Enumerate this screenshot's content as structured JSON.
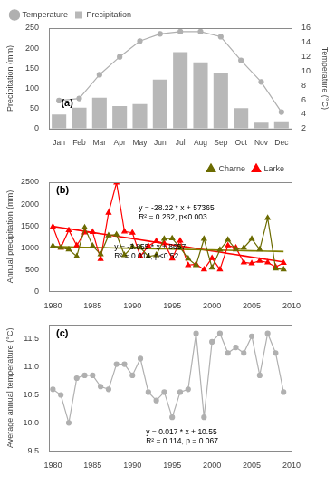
{
  "chart_data": [
    {
      "type": "bar",
      "categories": [
        "Jan",
        "Feb",
        "Mar",
        "Apr",
        "May",
        "Jun",
        "Jul",
        "Aug",
        "Sep",
        "Oct",
        "Nov",
        "Dec"
      ],
      "series": [
        {
          "name": "Precipitation",
          "type": "bar",
          "color": "#b8b8b8",
          "values": [
            35,
            52,
            77,
            56,
            61,
            122,
            190,
            165,
            139,
            51,
            15,
            18
          ]
        },
        {
          "name": "Temperature",
          "type": "line",
          "axis": "y2",
          "color": "#b0b0b0",
          "marker": "circle",
          "values": [
            5.9,
            6.2,
            9.5,
            12.0,
            14.2,
            15.2,
            15.5,
            15.5,
            14.8,
            11.5,
            8.5,
            4.3
          ]
        }
      ],
      "ylabel": "Precipitation (mm)",
      "y2label": "Temperature (°C)",
      "ylim": [
        0,
        250
      ],
      "yticks": [
        0,
        50,
        100,
        150,
        200,
        250
      ],
      "y2lim": [
        2,
        16
      ],
      "y2ticks": [
        2,
        4,
        6,
        8,
        10,
        12,
        14,
        16
      ],
      "legend": "upper left",
      "grid": false,
      "annotations": [
        "(a)"
      ]
    },
    {
      "type": "line",
      "x": [
        1980,
        1981,
        1982,
        1983,
        1984,
        1985,
        1986,
        1987,
        1988,
        1989,
        1990,
        1991,
        1992,
        1993,
        1994,
        1995,
        1996,
        1997,
        1998,
        1999,
        2000,
        2001,
        2002,
        2003,
        2004,
        2005,
        2006,
        2007,
        2008,
        2009
      ],
      "series": [
        {
          "name": "Charne",
          "color": "#6b6b00",
          "marker": "triangle",
          "values": [
            1040,
            1000,
            960,
            800,
            1460,
            1040,
            850,
            1280,
            1300,
            830,
            1020,
            1000,
            800,
            830,
            1200,
            1210,
            1000,
            750,
            600,
            1200,
            540,
            950,
            1180,
            960,
            1000,
            1200,
            960,
            1680,
            520,
            500
          ]
        },
        {
          "color": "#808000",
          "marker": "none",
          "values": [
            1024.1,
            1020.245,
            1016.39,
            1012.535,
            1008.68,
            1004.825,
            1000.97,
            997.115,
            993.26,
            989.405,
            985.55,
            981.695,
            977.84,
            973.985,
            970.13,
            966.275,
            962.42,
            958.565,
            954.71,
            950.855,
            947,
            943.145,
            939.29,
            935.435,
            931.58,
            927.725,
            923.87,
            920.015,
            916.16,
            912.305
          ]
        },
        {
          "name": "Larke",
          "color": "#ff0000",
          "marker": "triangle",
          "values": [
            1480,
            1000,
            1400,
            1050,
            1350,
            1360,
            740,
            1800,
            2490,
            1370,
            1340,
            800,
            1040,
            1150,
            1100,
            750,
            1160,
            600,
            620,
            500,
            760,
            500,
            1050,
            1000,
            660,
            640,
            700,
            660,
            560,
            650
          ]
        },
        {
          "color": "#ff0000",
          "marker": "none",
          "values": [
            1489.4,
            1461.18,
            1432.96,
            1404.74,
            1376.52,
            1348.3,
            1320.08,
            1291.86,
            1263.64,
            1235.42,
            1207.2,
            1178.98,
            1150.76,
            1122.54,
            1094.32,
            1066.1,
            1037.88,
            1009.66,
            981.44,
            953.22,
            925,
            896.78,
            868.56,
            840.34,
            812.12,
            783.9,
            755.68,
            727.46,
            699.24,
            671.02
          ]
        }
      ],
      "ylabel": "Annual precipitation (mm)",
      "xlim": [
        1979.5,
        2010
      ],
      "xticks": [
        1980,
        1985,
        1990,
        1995,
        2000,
        2005,
        2010
      ],
      "ylim": [
        0,
        2500
      ],
      "yticks": [
        0,
        500,
        1000,
        1500,
        2000,
        2500
      ],
      "legend": "upper right",
      "grid": false,
      "annotations": [
        "y = -28.22 * x + 57365\nR² = 0.262, p<0.003",
        "y = -3.855 * x + 8657\nR² = 0.014, p<0.52",
        "(b)"
      ]
    },
    {
      "type": "line",
      "x": [
        1980,
        1981,
        1982,
        1983,
        1984,
        1985,
        1986,
        1987,
        1988,
        1989,
        1990,
        1991,
        1992,
        1993,
        1994,
        1995,
        1996,
        1997,
        1998,
        1999,
        2000,
        2001,
        2002,
        2003,
        2004,
        2005,
        2006,
        2007,
        2008,
        2009
      ],
      "series": [
        {
          "color": "#b0b0b0",
          "marker": "circle",
          "values": [
            10.6,
            10.5,
            10.0,
            10.8,
            10.85,
            10.85,
            10.65,
            10.6,
            11.05,
            11.05,
            10.85,
            11.15,
            10.55,
            10.4,
            10.55,
            10.1,
            10.55,
            10.6,
            11.6,
            10.1,
            11.45,
            11.6,
            11.25,
            11.35,
            11.25,
            11.55,
            10.85,
            11.6,
            11.25,
            10.55
          ]
        }
      ],
      "ylabel": "Average annual temperature (°C)",
      "xlim": [
        1979.5,
        2010
      ],
      "xticks": [
        1980,
        1985,
        1990,
        1995,
        2000,
        2005,
        2010
      ],
      "ylim": [
        9.5,
        11.75
      ],
      "yticks": [
        9.5,
        {
          "value": 10,
          "label": "10.0"
        },
        10.5,
        {
          "value": 11,
          "label": "11.0"
        },
        11.5
      ],
      "grid": false,
      "annotations": [
        "y = 0.017 * x + 10.55\nR² = 0.114, p = 0.067",
        "(c)"
      ]
    }
  ]
}
